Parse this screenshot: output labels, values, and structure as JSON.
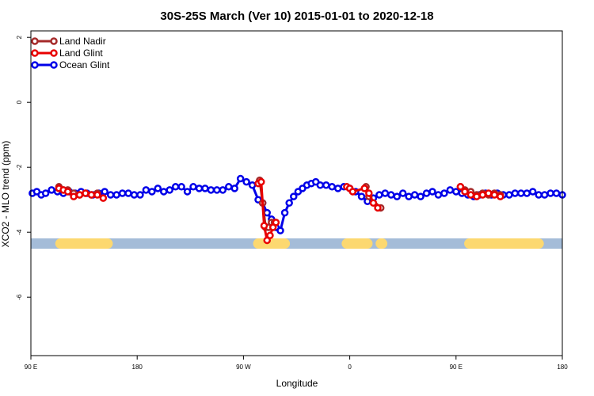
{
  "chart_data": {
    "type": "line",
    "title": "30S-25S March (Ver 10)   2015-01-01 to 2020-12-18",
    "xlabel": "Longitude",
    "ylabel": "XCO2 - MLO trend (ppm)",
    "xlim": [
      90,
      450
    ],
    "ylim": [
      -7.8,
      2.2
    ],
    "x_ticks": [
      {
        "value": 90,
        "label": "90 E"
      },
      {
        "value": 162,
        "label": "180"
      },
      {
        "value": 234,
        "label": "90 W"
      },
      {
        "value": 306,
        "label": "0"
      },
      {
        "value": 378,
        "label": "90 E"
      },
      {
        "value": 450,
        "label": "180"
      }
    ],
    "y_ticks": [
      2,
      0,
      -2,
      -4,
      -6
    ],
    "grid": false,
    "legend_position": "top-left",
    "land_band": {
      "y": -4.35,
      "ocean_color": "#a4bcd8",
      "land_color": "#fcd870",
      "land_segments": [
        [
          110,
          142
        ],
        [
          244,
          262
        ],
        [
          304,
          318
        ],
        [
          327,
          328
        ],
        [
          387,
          434
        ]
      ]
    },
    "series": [
      {
        "name": "Land Nadir",
        "color": "#a52a2a",
        "x": [
          109,
          112,
          115,
          119,
          123,
          127,
          131,
          135,
          245,
          247,
          249,
          251,
          253,
          255,
          381,
          384,
          388,
          392,
          396,
          400,
          404,
          408,
          317,
          319,
          327
        ],
        "y": [
          -2.6,
          -2.7,
          -2.7,
          -2.8,
          -2.85,
          -2.8,
          -2.85,
          -2.8,
          -2.4,
          -3.1,
          -3.85,
          -3.85,
          -3.7,
          -3.7,
          -2.6,
          -2.7,
          -2.75,
          -2.85,
          -2.8,
          -2.85,
          -2.8,
          -2.85,
          -2.6,
          -2.9,
          -3.25
        ]
      },
      {
        "name": "Land Glint",
        "color": "#e80000",
        "x": [
          109,
          112,
          115,
          119,
          123,
          127,
          131,
          135,
          139,
          244,
          246,
          248,
          250,
          252,
          254,
          256,
          304,
          306,
          308,
          316,
          319,
          322,
          325,
          381,
          384,
          388,
          392,
          396,
          400,
          404,
          408
        ],
        "y": [
          -2.65,
          -2.7,
          -2.75,
          -2.9,
          -2.85,
          -2.8,
          -2.85,
          -2.85,
          -2.95,
          -2.5,
          -2.45,
          -3.8,
          -4.25,
          -4.1,
          -3.85,
          -3.7,
          -2.6,
          -2.65,
          -2.75,
          -2.65,
          -2.8,
          -3.1,
          -3.25,
          -2.6,
          -2.75,
          -2.85,
          -2.9,
          -2.85,
          -2.8,
          -2.85,
          -2.9
        ]
      },
      {
        "name": "Ocean Glint",
        "color": "#0000e8",
        "x": [
          91,
          94,
          97,
          100,
          104,
          108,
          112,
          116,
          120,
          124,
          128,
          132,
          136,
          140,
          144,
          148,
          152,
          156,
          160,
          164,
          168,
          172,
          176,
          180,
          184,
          188,
          192,
          196,
          200,
          204,
          208,
          212,
          216,
          220,
          224,
          228,
          232,
          236,
          240,
          244,
          247,
          250,
          253,
          256,
          259,
          262,
          265,
          268,
          271,
          274,
          277,
          280,
          283,
          286,
          290,
          294,
          298,
          302,
          306,
          310,
          314,
          318,
          322,
          326,
          330,
          334,
          338,
          342,
          346,
          350,
          354,
          358,
          362,
          366,
          370,
          374,
          378,
          382,
          386,
          390,
          394,
          398,
          402,
          406,
          410,
          414,
          418,
          422,
          426,
          430,
          434,
          438,
          442,
          446,
          450
        ],
        "y": [
          -2.8,
          -2.75,
          -2.85,
          -2.8,
          -2.7,
          -2.75,
          -2.8,
          -2.75,
          -2.8,
          -2.75,
          -2.8,
          -2.85,
          -2.8,
          -2.75,
          -2.85,
          -2.85,
          -2.8,
          -2.8,
          -2.85,
          -2.85,
          -2.7,
          -2.75,
          -2.65,
          -2.75,
          -2.7,
          -2.6,
          -2.6,
          -2.75,
          -2.6,
          -2.65,
          -2.65,
          -2.7,
          -2.7,
          -2.7,
          -2.6,
          -2.65,
          -2.35,
          -2.45,
          -2.55,
          -3.0,
          -3.1,
          -3.4,
          -3.6,
          -3.85,
          -3.95,
          -3.4,
          -3.1,
          -2.9,
          -2.75,
          -2.65,
          -2.55,
          -2.5,
          -2.45,
          -2.55,
          -2.55,
          -2.6,
          -2.65,
          -2.6,
          -2.65,
          -2.75,
          -2.9,
          -3.05,
          -2.95,
          -2.85,
          -2.8,
          -2.85,
          -2.9,
          -2.8,
          -2.9,
          -2.85,
          -2.9,
          -2.8,
          -2.75,
          -2.85,
          -2.8,
          -2.7,
          -2.75,
          -2.8,
          -2.85,
          -2.9,
          -2.85,
          -2.8,
          -2.85,
          -2.8,
          -2.85,
          -2.85,
          -2.8,
          -2.8,
          -2.8,
          -2.75,
          -2.85,
          -2.85,
          -2.8,
          -2.8,
          -2.85
        ]
      }
    ]
  }
}
